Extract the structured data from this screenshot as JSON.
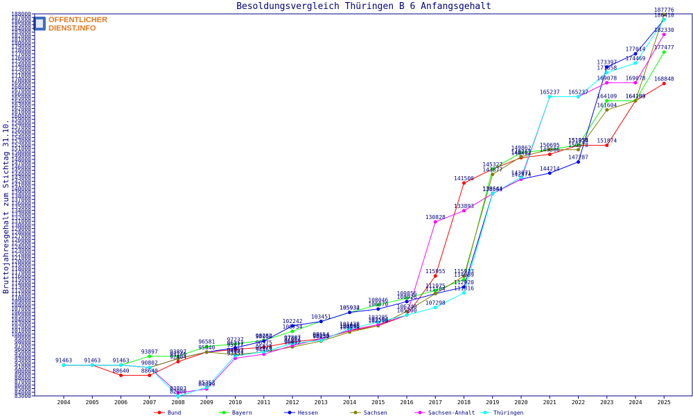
{
  "logo": {
    "line1": "ÖFFENTLICHER",
    "line2": "DIENST.INFO"
  },
  "chart_data": {
    "type": "line",
    "title": "Besoldungsvergleich Thüringen B 6 Anfangsgehalt",
    "xlabel": "",
    "ylabel": "Bruttojahresgehalt zum Stichtag 31.10.",
    "ylim": [
      83000,
      188000
    ],
    "ytick_step": 1000,
    "grid": false,
    "legend_position": "bottom",
    "x": [
      "2004",
      "2005",
      "2006",
      "2007",
      "2008",
      "2009",
      "2010",
      "2011",
      "2012",
      "2013",
      "2014",
      "2015",
      "2016",
      "2017",
      "2018",
      "2019",
      "2020",
      "2021",
      "2022",
      "2023",
      "2024",
      "2025"
    ],
    "series": [
      {
        "name": "Bund",
        "color": "#ff0000",
        "values": [
          91463,
          91463,
          88640,
          88640,
          92404,
          95040,
          95777,
          96375,
          97807,
          98654,
          100896,
          102298,
          105200,
          115955,
          141500,
          145327,
          148462,
          149386,
          151874,
          151874,
          164103,
          168848
        ]
      },
      {
        "name": "Bayern",
        "color": "#00ff00",
        "values": [
          91463,
          91463,
          91463,
          93897,
          93897,
          96581,
          97237,
          98282,
          100754,
          103451,
          105932,
          108046,
          109856,
          111975,
          114989,
          145327,
          149862,
          150695,
          151958,
          164109,
          164109,
          177477
        ]
      },
      {
        "name": "Hessen",
        "color": "#0000ff",
        "values": [
          91463,
          91463,
          91463,
          90802,
          93240,
          95040,
          96217,
          98056,
          102242,
          103451,
          105934,
          106870,
          108926,
          111104,
          112920,
          138644,
          142574,
          144214,
          147287,
          173397,
          177014,
          186410
        ]
      },
      {
        "name": "Sachsen",
        "color": "#808000",
        "values": [
          91463,
          91463,
          91463,
          90802,
          93240,
          95040,
          94362,
          95076,
          96452,
          98059,
          100536,
          102298,
          106240,
          111104,
          115933,
          143877,
          148762,
          150695,
          150678,
          161604,
          164103,
          187776
        ]
      },
      {
        "name": "Sachsen-Anhalt",
        "color": "#ff00ff",
        "values": [
          91463,
          91463,
          91463,
          90802,
          83803,
          84899,
          93353,
          94463,
          96859,
          98654,
          101045,
          102596,
          105200,
          130828,
          133893,
          138561,
          142574,
          165237,
          165237,
          169078,
          169078,
          182330
        ]
      },
      {
        "name": "Thüringen",
        "color": "#00ffff",
        "values": [
          91463,
          91463,
          91463,
          90802,
          82900,
          85353,
          94033,
          95078,
          97462,
          98250,
          101438,
          103285,
          105200,
          107298,
          111316,
          138561,
          143071,
          165237,
          165237,
          171858,
          174469,
          186410
        ]
      }
    ]
  }
}
